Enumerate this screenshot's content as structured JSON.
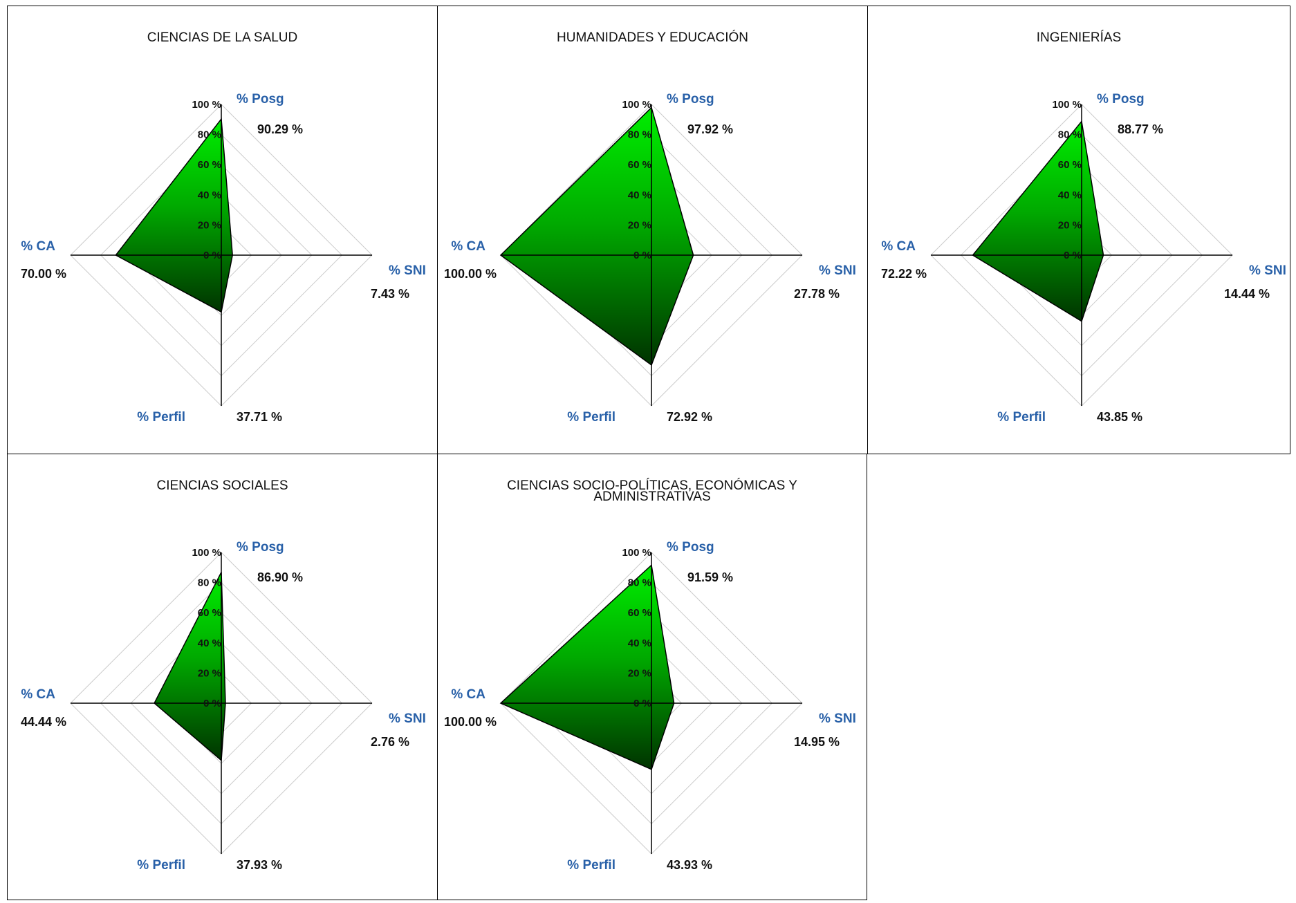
{
  "axes": [
    "% Posg",
    "% SNI",
    "% Perfil",
    "% CA"
  ],
  "ticks": [
    "100 %",
    "80 %",
    "60 %",
    "40 %",
    "20 %",
    "0 %"
  ],
  "colors": {
    "fill_top": "#00ee00",
    "fill_bottom": "#003300",
    "axis_name": "#2860a8",
    "grid": "#cccccc"
  },
  "chart_data": [
    {
      "type": "radar",
      "title": "CIENCIAS DE LA SALUD",
      "axes": [
        "% Posg",
        "% SNI",
        "% Perfil",
        "% CA"
      ],
      "values": [
        90.29,
        7.43,
        37.71,
        70.0
      ],
      "value_labels": [
        "90.29 %",
        "7.43 %",
        "37.71 %",
        "70.00 %"
      ]
    },
    {
      "type": "radar",
      "title": "HUMANIDADES Y EDUCACIÓN",
      "axes": [
        "% Posg",
        "% SNI",
        "% Perfil",
        "% CA"
      ],
      "values": [
        97.92,
        27.78,
        72.92,
        100.0
      ],
      "value_labels": [
        "97.92 %",
        "27.78 %",
        "72.92 %",
        "100.00 %"
      ]
    },
    {
      "type": "radar",
      "title": "INGENIERÍAS",
      "axes": [
        "% Posg",
        "% SNI",
        "% Perfil",
        "% CA"
      ],
      "values": [
        88.77,
        14.44,
        43.85,
        72.22
      ],
      "value_labels": [
        "88.77 %",
        "14.44 %",
        "43.85 %",
        "72.22 %"
      ]
    },
    {
      "type": "radar",
      "title": "CIENCIAS SOCIALES",
      "axes": [
        "% Posg",
        "% SNI",
        "% Perfil",
        "% CA"
      ],
      "values": [
        86.9,
        2.76,
        37.93,
        44.44
      ],
      "value_labels": [
        "86.90 %",
        "2.76 %",
        "37.93 %",
        "44.44 %"
      ]
    },
    {
      "type": "radar",
      "title": "CIENCIAS SOCIO-POLÍTICAS, ECONÓMICAS Y\nADMINISTRATIVAS",
      "axes": [
        "% Posg",
        "% SNI",
        "% Perfil",
        "% CA"
      ],
      "values": [
        91.59,
        14.95,
        43.93,
        100.0
      ],
      "value_labels": [
        "91.59 %",
        "14.95 %",
        "43.93 %",
        "100.00 %"
      ]
    }
  ]
}
